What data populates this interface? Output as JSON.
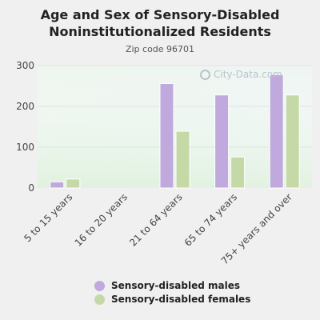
{
  "header": {
    "title_line1": "Age and Sex of Sensory-Disabled",
    "title_line2": "Noninstitutionalized Residents",
    "subtitle": "Zip code 96701"
  },
  "watermark": {
    "text": "City-Data.com",
    "icon": "magnifier-icon"
  },
  "chart_data": {
    "type": "bar",
    "categories": [
      "5 to 15 years",
      "16 to 20 years",
      "21 to 64 years",
      "65 to 74 years",
      "75+ years and over"
    ],
    "series": [
      {
        "name": "Sensory-disabled males",
        "color": "#c0a9dc",
        "values": [
          15,
          0,
          256,
          228,
          278
        ]
      },
      {
        "name": "Sensory-disabled females",
        "color": "#c4d9a6",
        "values": [
          22,
          0,
          139,
          76,
          228
        ]
      }
    ],
    "ylim": [
      0,
      300
    ],
    "yticks": [
      0,
      100,
      200,
      300
    ],
    "grid": true,
    "legend_position": "bottom"
  }
}
